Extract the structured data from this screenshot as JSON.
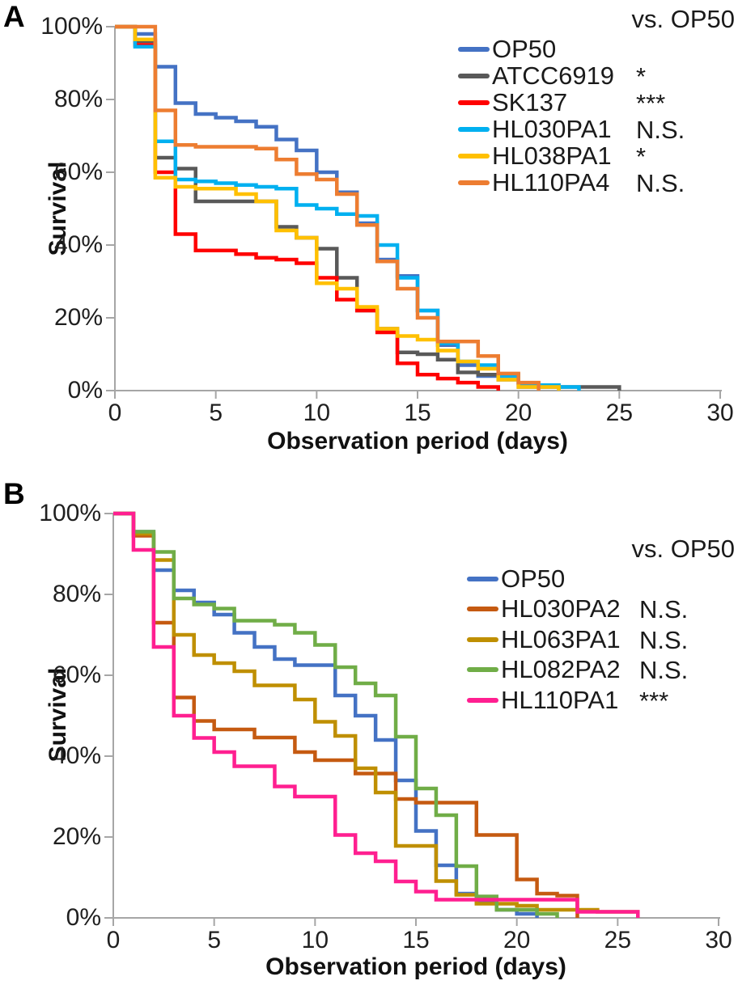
{
  "figure": {
    "background": "#ffffff",
    "axis_color": "#a6a6a6",
    "text_color": "#1a1a1a"
  },
  "chart_data": [
    {
      "type": "line",
      "subtype": "step-survival",
      "panel_label": "A",
      "title": "",
      "xlabel": "Observation period (days)",
      "ylabel": "Survival",
      "legend_header": "vs. OP50",
      "xlim": [
        0,
        30
      ],
      "ylim": [
        0,
        100
      ],
      "x_ticks": [
        0,
        5,
        10,
        15,
        20,
        25,
        30
      ],
      "y_ticks_percent": [
        0,
        20,
        40,
        60,
        80,
        100
      ],
      "y_tick_labels": [
        "0%",
        "20%",
        "40%",
        "60%",
        "80%",
        "100%"
      ],
      "grid": false,
      "legend_position": "top-right",
      "x_unit": "days",
      "series": [
        {
          "name": "OP50",
          "color": "#4472C4",
          "vs_op50_significance": "",
          "days": "index = day",
          "values_percent": [
            100,
            98,
            89,
            79,
            76,
            75,
            74,
            72.5,
            69,
            66,
            60,
            54.5,
            46,
            36,
            31.5,
            22,
            12.5,
            7,
            4,
            3,
            2,
            1.5,
            0
          ]
        },
        {
          "name": "ATCC6919",
          "color": "#595959",
          "vs_op50_significance": "*",
          "days": "index = day",
          "values_percent": [
            100,
            96,
            64,
            61,
            52,
            52,
            52,
            52,
            45,
            42,
            39,
            31,
            22,
            17,
            10.5,
            10,
            8.5,
            5,
            4.4,
            4.4,
            1,
            1,
            1,
            1,
            1,
            0
          ]
        },
        {
          "name": "SK137",
          "color": "#FF0000",
          "vs_op50_significance": "***",
          "days": "index = day",
          "values_percent": [
            100,
            95,
            60,
            43,
            38.5,
            38.5,
            37.5,
            36.5,
            36,
            35,
            31,
            25,
            22,
            16,
            7.5,
            4.4,
            3.3,
            2.2,
            1,
            0
          ]
        },
        {
          "name": "HL030PA1",
          "color": "#00B0F0",
          "vs_op50_significance": "N.S.",
          "days": "index = day",
          "values_percent": [
            100,
            94.5,
            68.5,
            58,
            57.5,
            57,
            56.5,
            56,
            55.5,
            51,
            50,
            48.5,
            48,
            40,
            31,
            22,
            13,
            8,
            7,
            4,
            2,
            1.5,
            1,
            0
          ]
        },
        {
          "name": "HL038PA1",
          "color": "#FFC000",
          "vs_op50_significance": "*",
          "days": "index = day",
          "values_percent": [
            100,
            96.5,
            58.5,
            56,
            55.5,
            55.5,
            54,
            52,
            44,
            42,
            29.5,
            28,
            23,
            17,
            15,
            14,
            11,
            8,
            6,
            3,
            1,
            1,
            0
          ]
        },
        {
          "name": "HL110PA4",
          "color": "#ED7D31",
          "vs_op50_significance": "N.S.",
          "days": "index = day",
          "values_percent": [
            100,
            100,
            77,
            67.5,
            67,
            67,
            67,
            66.5,
            63.5,
            59.5,
            58,
            54,
            45.5,
            35.5,
            28,
            20,
            13.5,
            13.5,
            9.5,
            4.7,
            2.2,
            0
          ]
        }
      ]
    },
    {
      "type": "line",
      "subtype": "step-survival",
      "panel_label": "B",
      "title": "",
      "xlabel": "Observation period (days)",
      "ylabel": "Survival",
      "legend_header": "vs. OP50",
      "xlim": [
        0,
        30
      ],
      "ylim": [
        0,
        100
      ],
      "x_ticks": [
        0,
        5,
        10,
        15,
        20,
        25,
        30
      ],
      "y_ticks_percent": [
        0,
        20,
        40,
        60,
        80,
        100
      ],
      "y_tick_labels": [
        "0%",
        "20%",
        "40%",
        "60%",
        "80%",
        "100%"
      ],
      "grid": false,
      "legend_position": "top-right",
      "x_unit": "days",
      "series": [
        {
          "name": "OP50",
          "color": "#4472C4",
          "vs_op50_significance": "",
          "days": "index = day",
          "values_percent": [
            100,
            95.5,
            86,
            81,
            78,
            75,
            70.5,
            67,
            64,
            62.5,
            62.5,
            55,
            50,
            44,
            34,
            21.5,
            13,
            6,
            4,
            2,
            1,
            0
          ]
        },
        {
          "name": "HL030PA2",
          "color": "#C55A11",
          "vs_op50_significance": "N.S.",
          "days": "index = day",
          "values_percent": [
            100,
            94.5,
            73,
            54.5,
            48.7,
            46.6,
            46.6,
            44.6,
            44.6,
            41,
            39,
            39,
            35.7,
            35.7,
            29.4,
            28.5,
            28.5,
            28.5,
            20.5,
            20.5,
            9.5,
            6,
            5.5,
            0
          ]
        },
        {
          "name": "HL063PA1",
          "color": "#BF8F00",
          "vs_op50_significance": "N.S.",
          "days": "index = day",
          "values_percent": [
            100,
            95,
            88.5,
            70,
            65,
            63,
            61,
            57.5,
            57.5,
            54,
            48.5,
            45,
            37,
            31,
            17.8,
            17.8,
            9.1,
            5.7,
            3.5,
            3.5,
            3,
            2,
            2,
            2,
            1.5,
            1.5,
            0
          ]
        },
        {
          "name": "HL082PA2",
          "color": "#70AD47",
          "vs_op50_significance": "N.S.",
          "days": "index = day",
          "values_percent": [
            100,
            95.5,
            90.5,
            79,
            77.5,
            76.5,
            73.5,
            73.5,
            72.5,
            70.5,
            67.5,
            62,
            58,
            55,
            44.8,
            32,
            25.4,
            12.8,
            5.3,
            2,
            2,
            1,
            0
          ]
        },
        {
          "name": "HL110PA1",
          "color": "#FF1F90",
          "vs_op50_significance": "***",
          "days": "index = day",
          "values_percent": [
            100,
            91,
            67,
            50,
            44.5,
            41,
            37.5,
            37.5,
            32.5,
            30,
            30,
            20.5,
            16,
            14,
            9,
            6.5,
            4.5,
            4.5,
            4.5,
            4.5,
            4.5,
            4.5,
            4.5,
            1.5,
            1.5,
            1.5,
            0
          ]
        }
      ]
    }
  ]
}
